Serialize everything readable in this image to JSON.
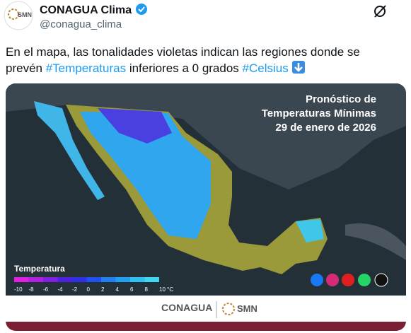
{
  "header": {
    "avatar_label": "SMN",
    "name": "CONAGUA Clima",
    "handle": "@conagua_clima"
  },
  "tweet": {
    "segments": [
      {
        "text": "En el mapa, las tonalidades violetas indican las regiones donde se prevén "
      },
      {
        "hashtag": "#Temperaturas"
      },
      {
        "text": " inferiores a 0 grados "
      },
      {
        "hashtag": "#Celsius"
      }
    ]
  },
  "image": {
    "title": [
      "Pronóstico de",
      "Temperaturas Mínimas",
      "29 de enero de 2026"
    ],
    "legend_title": "Temperatura",
    "scale_labels": [
      "-10",
      "-8",
      "-6",
      "-4",
      "-2",
      "0",
      "2",
      "4",
      "6",
      "8",
      "10 °C"
    ],
    "footer": [
      "CONAGUA",
      "SMN"
    ]
  }
}
